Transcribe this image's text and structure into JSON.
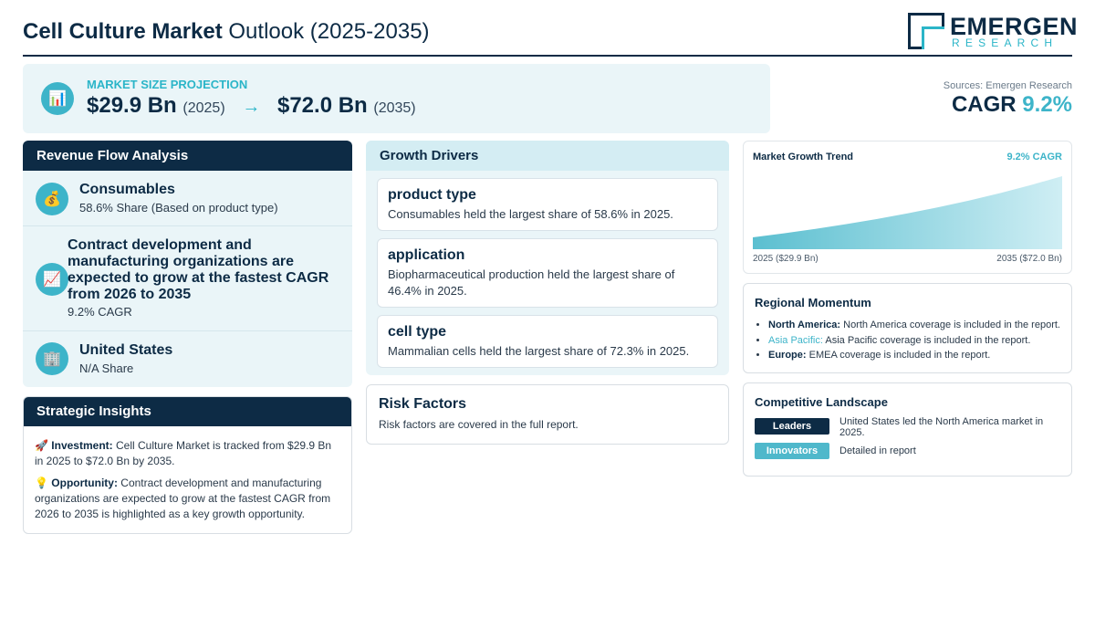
{
  "header": {
    "title_bold": "Cell Culture Market",
    "title_rest": "Outlook (2025-2035)",
    "logo_main": "EMERGEN",
    "logo_sub": "RESEARCH"
  },
  "projection": {
    "icon": "bar-chart-icon",
    "label": "MARKET SIZE PROJECTION",
    "start_value": "$29.9 Bn",
    "start_year": "(2025)",
    "arrow": "→",
    "end_value": "$72.0 Bn",
    "end_year": "(2035)"
  },
  "cagr": {
    "source": "Sources: Emergen Research",
    "label": "CAGR",
    "value": "9.2%"
  },
  "revenue": {
    "heading": "Revenue Flow Analysis",
    "items": [
      {
        "icon": "money-bag-icon",
        "title": "Consumables",
        "sub": "58.6% Share (Based on product type)"
      },
      {
        "icon": "chart-increasing-icon",
        "title": "Contract development and manufacturing organizations are expected to grow at the fastest CAGR from 2026 to 2035",
        "sub": "9.2% CAGR"
      },
      {
        "icon": "office-building-icon",
        "title": "United States",
        "sub": "N/A Share"
      }
    ]
  },
  "strategic": {
    "heading": "Strategic Insights",
    "investment_label": "Investment:",
    "investment_text": "Cell Culture Market is tracked from $29.9 Bn in 2025 to $72.0 Bn by 2035.",
    "opportunity_label": "Opportunity:",
    "opportunity_text": "Contract development and manufacturing organizations are expected to grow at the fastest CAGR from 2026 to 2035 is highlighted as a key growth opportunity."
  },
  "drivers": {
    "heading": "Growth Drivers",
    "items": [
      {
        "title": "product type",
        "text": "Consumables held the largest share of 58.6% in 2025."
      },
      {
        "title": "application",
        "text": "Biopharmaceutical production held the largest share of 46.4% in 2025."
      },
      {
        "title": "cell type",
        "text": "Mammalian cells held the largest share of 72.3% in 2025."
      }
    ]
  },
  "risk": {
    "title": "Risk Factors",
    "text": "Risk factors are covered in the full report."
  },
  "trend": {
    "title": "Market Growth Trend",
    "cagr": "9.2% CAGR",
    "start_label": "2025 ($29.9 Bn)",
    "end_label": "2035 ($72.0 Bn)",
    "colors": {
      "fill_light": "#cfeef4",
      "fill_dark": "#5bbfd0"
    }
  },
  "chart_data": {
    "type": "area",
    "x": [
      2025,
      2035
    ],
    "values": [
      29.9,
      72.0
    ],
    "xlabel": "",
    "ylabel": "",
    "title": "Market Growth Trend"
  },
  "region": {
    "title": "Regional Momentum",
    "items": [
      {
        "name": "North America:",
        "text": "North America coverage is included in the report."
      },
      {
        "name": "Asia Pacific:",
        "text": "Asia Pacific coverage is included in the report."
      },
      {
        "name": "Europe:",
        "text": "EMEA coverage is included in the report."
      }
    ]
  },
  "competitive": {
    "title": "Competitive Landscape",
    "leaders_label": "Leaders",
    "leaders_text": "United States led the North America market in 2025.",
    "innovators_label": "Innovators",
    "innovators_text": "Detailed in report",
    "colors": {
      "leaders": "#0d2b45",
      "innovators": "#4fb8cb"
    }
  }
}
